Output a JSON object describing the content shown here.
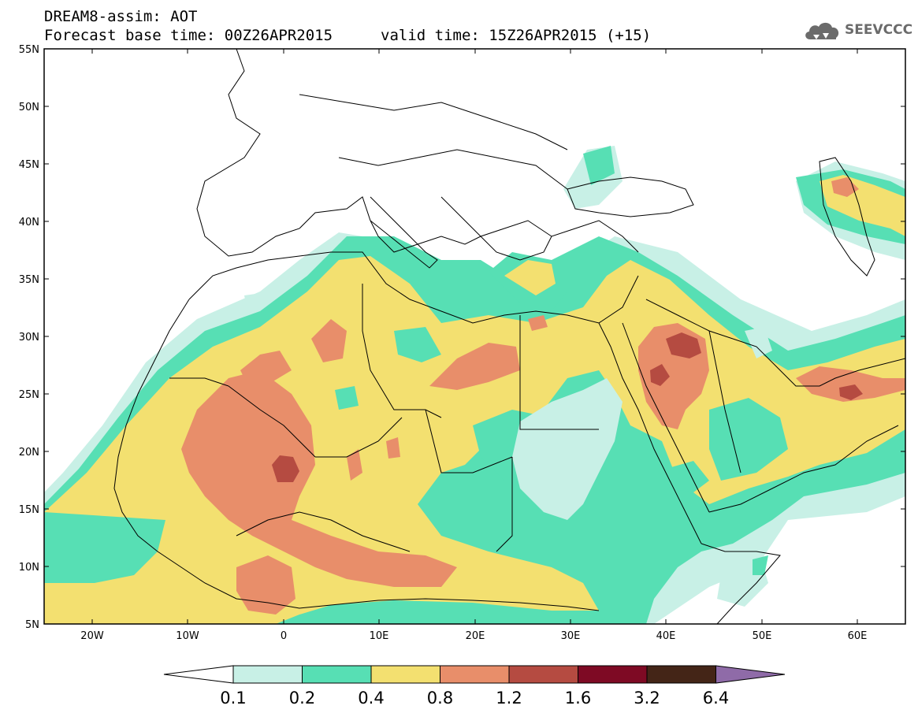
{
  "header": {
    "title_line1": "DREAM8-assim: AOT",
    "title_line2": "Forecast base time: 00Z26APR2015",
    "valid_time": "valid time: 15Z26APR2015 (+15)"
  },
  "logo": {
    "text": "SEEVCCC",
    "icon": "cloud-icon"
  },
  "map": {
    "lon_range": [
      -25,
      65
    ],
    "lat_range": [
      5,
      55
    ],
    "lat_ticks": [
      "5N",
      "10N",
      "15N",
      "20N",
      "25N",
      "30N",
      "35N",
      "40N",
      "45N",
      "50N",
      "55N"
    ],
    "lon_ticks": [
      "20W",
      "10W",
      "0",
      "10E",
      "20E",
      "30E",
      "40E",
      "50E",
      "60E"
    ]
  },
  "colorbar": {
    "colors": [
      "#ffffff",
      "#c8f0e6",
      "#57dfb4",
      "#f3e070",
      "#e88e6a",
      "#b54b41",
      "#7e0a24",
      "#442517",
      "#8f6ba8"
    ],
    "labels": [
      "0.1",
      "0.2",
      "0.4",
      "0.8",
      "1.2",
      "1.6",
      "3.2",
      "6.4"
    ]
  }
}
